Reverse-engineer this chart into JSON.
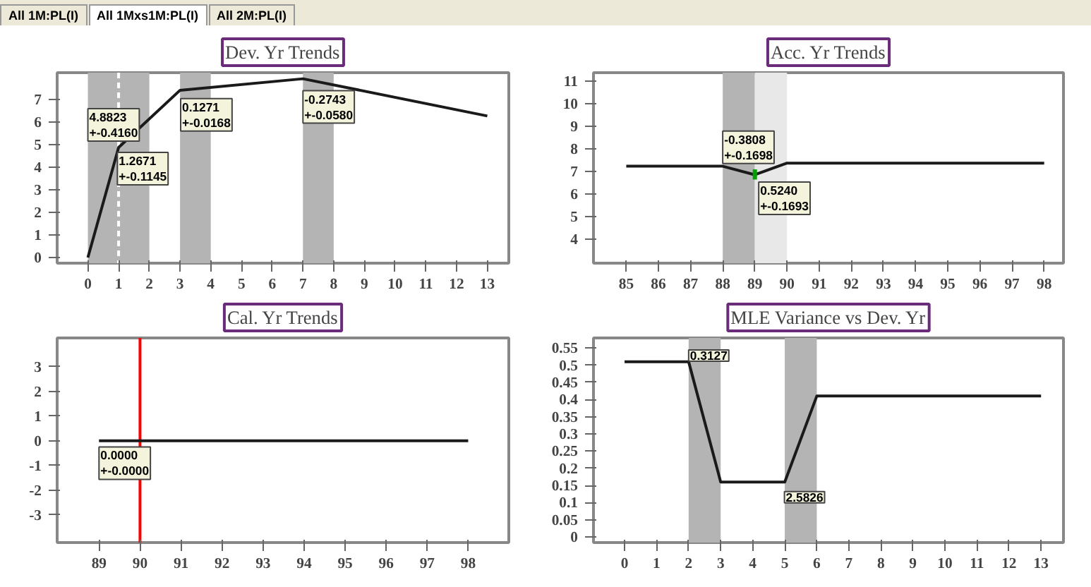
{
  "chart_data": [
    {
      "type": "other",
      "annotations": [
        "All 1M:PL(I)",
        "All 1Mxs1M:PL(I)",
        "All 2M:PL(I)"
      ]
    },
    {
      "type": "line",
      "title": "Dev. Yr Trends",
      "x": [
        0,
        1,
        3,
        7,
        13
      ],
      "series": [
        {
          "color": "#1a1a1a",
          "values": [
            0,
            4.88,
            7.42,
            7.93,
            6.28
          ]
        }
      ],
      "xlim": [
        -1,
        13.7
      ],
      "ylim": [
        -0.25,
        8.2
      ],
      "xticks": [
        0,
        1,
        2,
        3,
        4,
        5,
        6,
        7,
        8,
        9,
        10,
        11,
        12,
        13
      ],
      "yticks": [
        0,
        1,
        2,
        3,
        4,
        5,
        6,
        7
      ],
      "bands": [
        {
          "axis": "x",
          "from": 0,
          "to": 2,
          "color": "#b4b4b4"
        },
        {
          "axis": "x",
          "from": 3,
          "to": 4,
          "color": "#b4b4b4"
        },
        {
          "axis": "x",
          "from": 7,
          "to": 8,
          "color": "#b4b4b4"
        }
      ],
      "ref_lines": [
        {
          "axis": "x",
          "value": 1,
          "color": "#ffffff",
          "line_style": "dashed"
        }
      ],
      "annotations": [
        {
          "text": "4.8823\n+-0.4160",
          "x": 0.0,
          "y": 6.6
        },
        {
          "text": "1.2671\n+-0.1145",
          "x": 0.96,
          "y": 4.66
        },
        {
          "text": "0.1271\n+-0.0168",
          "x": 3.02,
          "y": 7.05
        },
        {
          "text": "-0.2743\n+-0.0580",
          "x": 7.0,
          "y": 7.4
        }
      ]
    },
    {
      "type": "line",
      "title": "Acc. Yr Trends",
      "x": [
        85,
        88,
        89,
        90,
        98
      ],
      "series": [
        {
          "color": "#1a1a1a",
          "values": [
            7.24,
            7.24,
            6.86,
            7.38,
            7.38
          ],
          "errors": [
            null,
            null,
            [
              6.65,
              7.1
            ],
            null,
            null
          ]
        }
      ],
      "xlim": [
        83.98,
        98.6
      ],
      "ylim": [
        2.94,
        11.39
      ],
      "xticks": [
        85,
        86,
        87,
        88,
        89,
        90,
        91,
        92,
        93,
        94,
        95,
        96,
        97,
        98
      ],
      "yticks": [
        4,
        5,
        6,
        7,
        8,
        9,
        10,
        11
      ],
      "bands": [
        {
          "axis": "x",
          "from": 88,
          "to": 89,
          "color": "#b4b4b4"
        },
        {
          "axis": "x",
          "from": 89,
          "to": 90,
          "color": "#e8e8e8"
        }
      ],
      "annotations": [
        {
          "text": "-0.3808\n+-0.1698",
          "x": 88.0,
          "y": 8.8
        },
        {
          "text": "0.5240\n+-0.1693",
          "x": 89.12,
          "y": 6.54
        }
      ]
    },
    {
      "type": "line",
      "title": "Cal. Yr Trends",
      "x": [
        89,
        98
      ],
      "series": [
        {
          "color": "#1a1a1a",
          "values": [
            0,
            0
          ]
        }
      ],
      "xlim": [
        87.98,
        98.99
      ],
      "ylim": [
        -4.13,
        4.17
      ],
      "xticks": [
        89,
        90,
        91,
        92,
        93,
        94,
        95,
        96,
        97,
        98
      ],
      "yticks": [
        -3,
        -2,
        -1,
        0,
        1,
        2,
        3
      ],
      "ref_lines": [
        {
          "axis": "x",
          "value": 90,
          "color": "#ff0000",
          "line_style": "solid"
        }
      ],
      "annotations": [
        {
          "text": "0.0000\n+-0.0000",
          "x": 89.0,
          "y": -0.25
        }
      ]
    },
    {
      "type": "line",
      "title": "MLE Variance vs Dev. Yr",
      "x": [
        0,
        2,
        3,
        5,
        6,
        13
      ],
      "series": [
        {
          "color": "#1a1a1a",
          "values": [
            0.51,
            0.51,
            0.16,
            0.16,
            0.41,
            0.41
          ]
        }
      ],
      "xlim": [
        -0.97,
        13.7
      ],
      "ylim": [
        -0.016,
        0.579
      ],
      "xticks": [
        0,
        1,
        2,
        3,
        4,
        5,
        6,
        7,
        8,
        9,
        10,
        11,
        12,
        13
      ],
      "yticks": [
        0,
        0.05,
        0.1,
        0.15,
        0.2,
        0.25,
        0.3,
        0.35,
        0.4,
        0.45,
        0.5,
        0.55
      ],
      "bands": [
        {
          "axis": "x",
          "from": 2,
          "to": 3,
          "color": "#b4b4b4"
        },
        {
          "axis": "x",
          "from": 5,
          "to": 6,
          "color": "#b4b4b4"
        }
      ],
      "annotations": [
        {
          "text": "0.3127",
          "x": 2.0,
          "y": 0.544
        },
        {
          "text": "2.5826",
          "x": 4.99,
          "y": 0.132
        }
      ]
    }
  ]
}
